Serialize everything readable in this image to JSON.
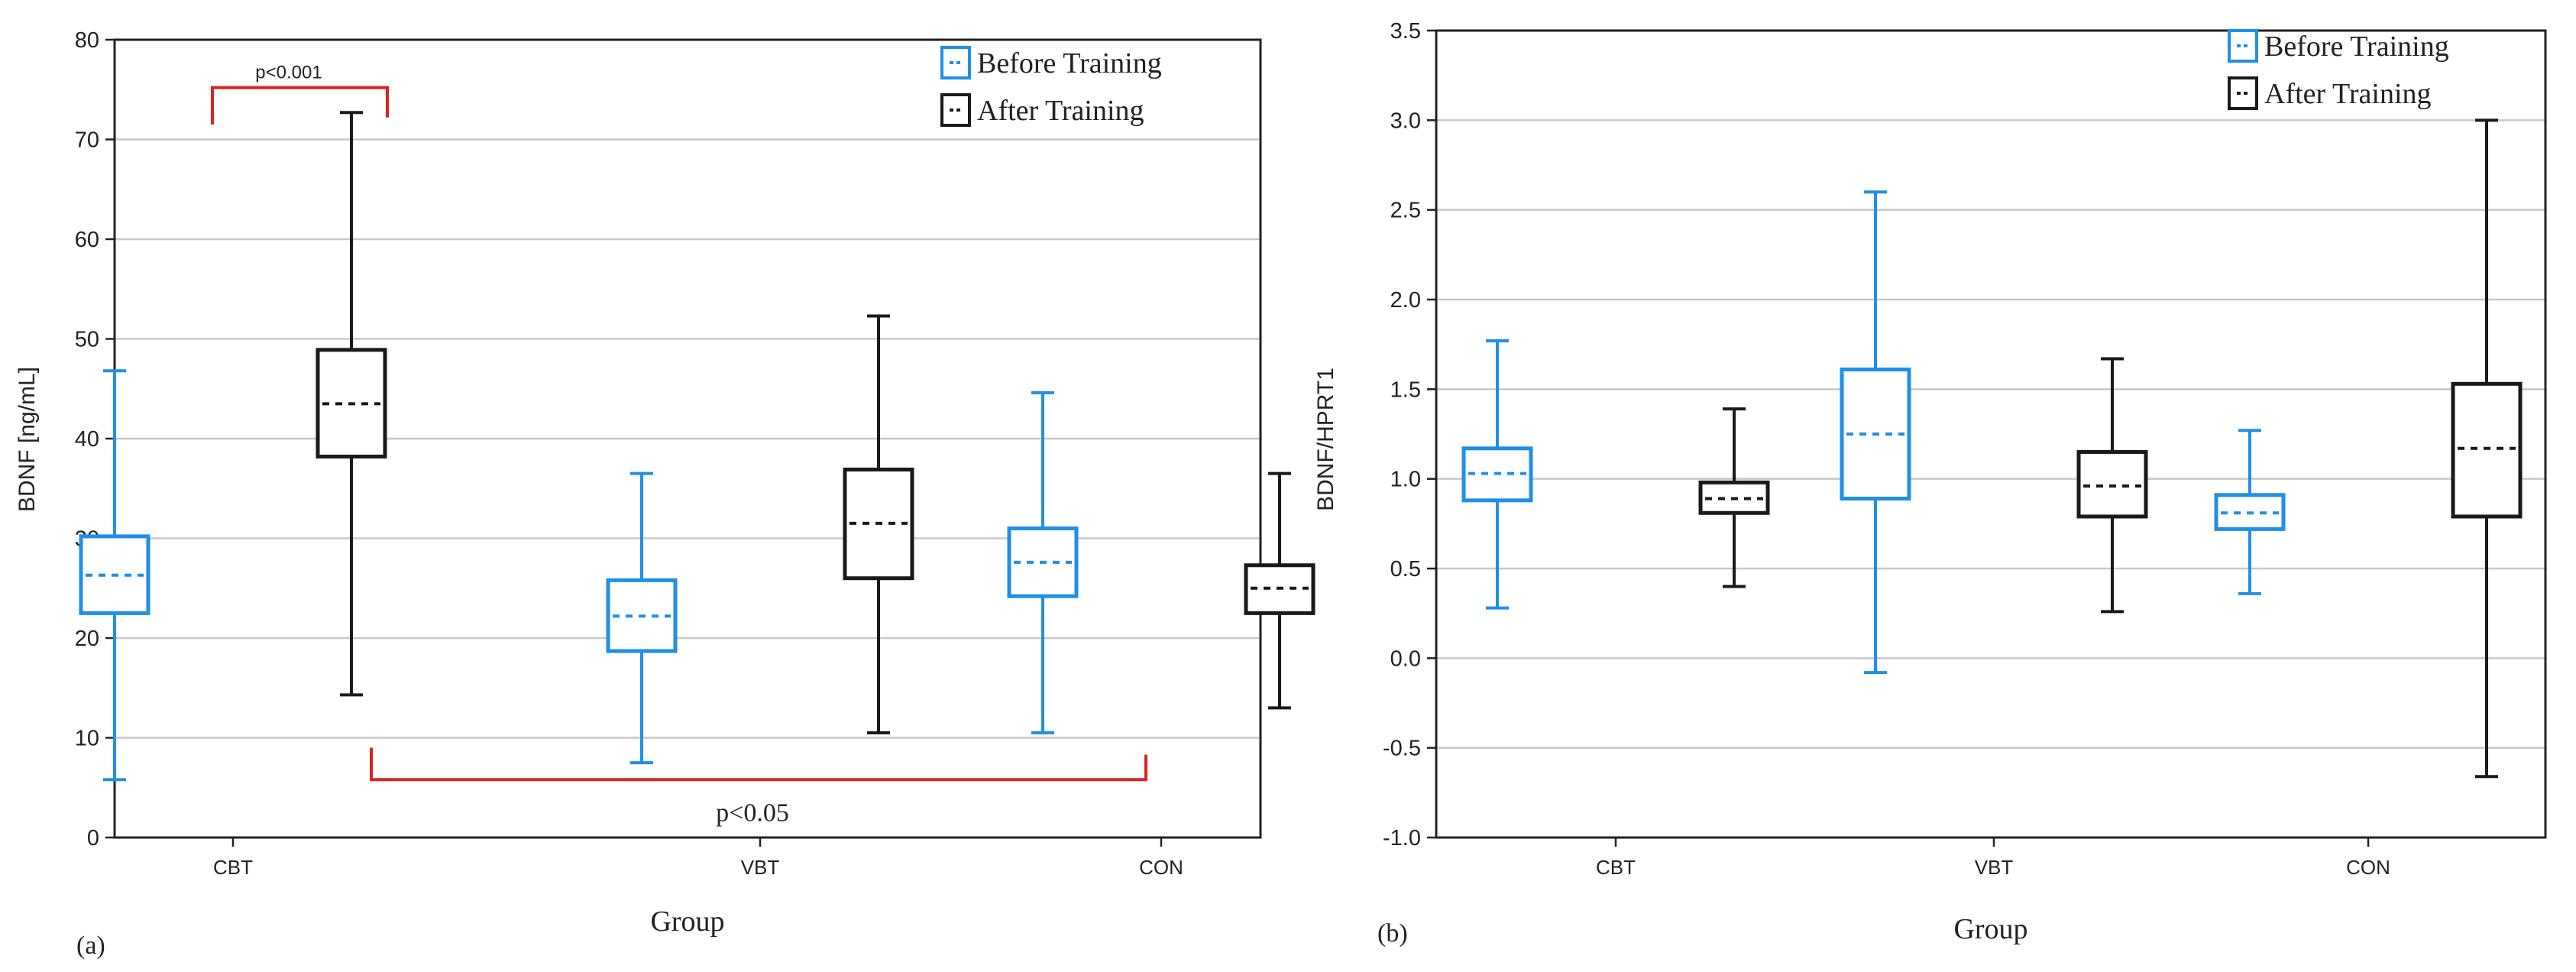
{
  "chart_data": [
    {
      "type": "box",
      "panel_label": "(a)",
      "xlabel": "Group",
      "ylabel": "BDNF [ng/mL]",
      "ylim": [
        0,
        80
      ],
      "yticks": [
        "0",
        "10",
        "20",
        "30",
        "40",
        "50",
        "60",
        "70",
        "80"
      ],
      "categories": [
        "CBT",
        "VBT",
        "CON"
      ],
      "grid": true,
      "legend": {
        "position": "top-right",
        "entries": [
          "Before Training",
          "After Training"
        ]
      },
      "colors": {
        "before": "#1f8fe8",
        "after": "#1a1a1a",
        "annotation": "#e02020"
      },
      "series": [
        {
          "name": "Before Training",
          "boxes": [
            {
              "category": "CBT",
              "min": 5.8,
              "q1": 22.5,
              "median": 26.3,
              "q3": 30.2,
              "max": 46.8
            },
            {
              "category": "VBT",
              "min": 7.5,
              "q1": 18.7,
              "median": 22.2,
              "q3": 25.8,
              "max": 36.5
            },
            {
              "category": "CON",
              "min": 10.5,
              "q1": 24.2,
              "median": 27.6,
              "q3": 31.0,
              "max": 44.6
            }
          ]
        },
        {
          "name": "After Training",
          "boxes": [
            {
              "category": "CBT",
              "min": 14.3,
              "q1": 38.2,
              "median": 43.5,
              "q3": 48.9,
              "max": 72.7
            },
            {
              "category": "VBT",
              "min": 10.5,
              "q1": 26.0,
              "median": 31.5,
              "q3": 36.9,
              "max": 52.3
            },
            {
              "category": "CON",
              "min": 13.0,
              "q1": 22.5,
              "median": 25.0,
              "q3": 27.3,
              "max": 36.5
            }
          ]
        }
      ],
      "annotations": [
        {
          "text": "p<0.001",
          "type": "top-bracket"
        },
        {
          "text": "p<0.05",
          "type": "bottom-bracket"
        }
      ]
    },
    {
      "type": "box",
      "panel_label": "(b)",
      "xlabel": "Group",
      "ylabel": "BDNF/HPRT1",
      "ylim": [
        -1.0,
        3.5
      ],
      "yticks": [
        "-1.0",
        "-0.5",
        "0.0",
        "0.5",
        "1.0",
        "1.5",
        "2.0",
        "2.5",
        "3.0",
        "3.5"
      ],
      "categories": [
        "CBT",
        "VBT",
        "CON"
      ],
      "grid": true,
      "legend": {
        "position": "top-right",
        "entries": [
          "Before Training",
          "After Training"
        ]
      },
      "colors": {
        "before": "#1f8fe8",
        "after": "#1a1a1a"
      },
      "series": [
        {
          "name": "Before Training",
          "boxes": [
            {
              "category": "CBT",
              "min": 0.28,
              "q1": 0.88,
              "median": 1.03,
              "q3": 1.17,
              "max": 1.77
            },
            {
              "category": "VBT",
              "min": -0.08,
              "q1": 0.89,
              "median": 1.25,
              "q3": 1.61,
              "max": 2.6
            },
            {
              "category": "CON",
              "min": 0.36,
              "q1": 0.72,
              "median": 0.81,
              "q3": 0.91,
              "max": 1.27
            }
          ]
        },
        {
          "name": "After Training",
          "boxes": [
            {
              "category": "CBT",
              "min": 0.4,
              "q1": 0.81,
              "median": 0.89,
              "q3": 0.98,
              "max": 1.39
            },
            {
              "category": "VBT",
              "min": 0.26,
              "q1": 0.79,
              "median": 0.96,
              "q3": 1.15,
              "max": 1.67
            },
            {
              "category": "CON",
              "min": -0.66,
              "q1": 0.79,
              "median": 1.17,
              "q3": 1.53,
              "max": 3.0
            }
          ]
        }
      ]
    }
  ]
}
